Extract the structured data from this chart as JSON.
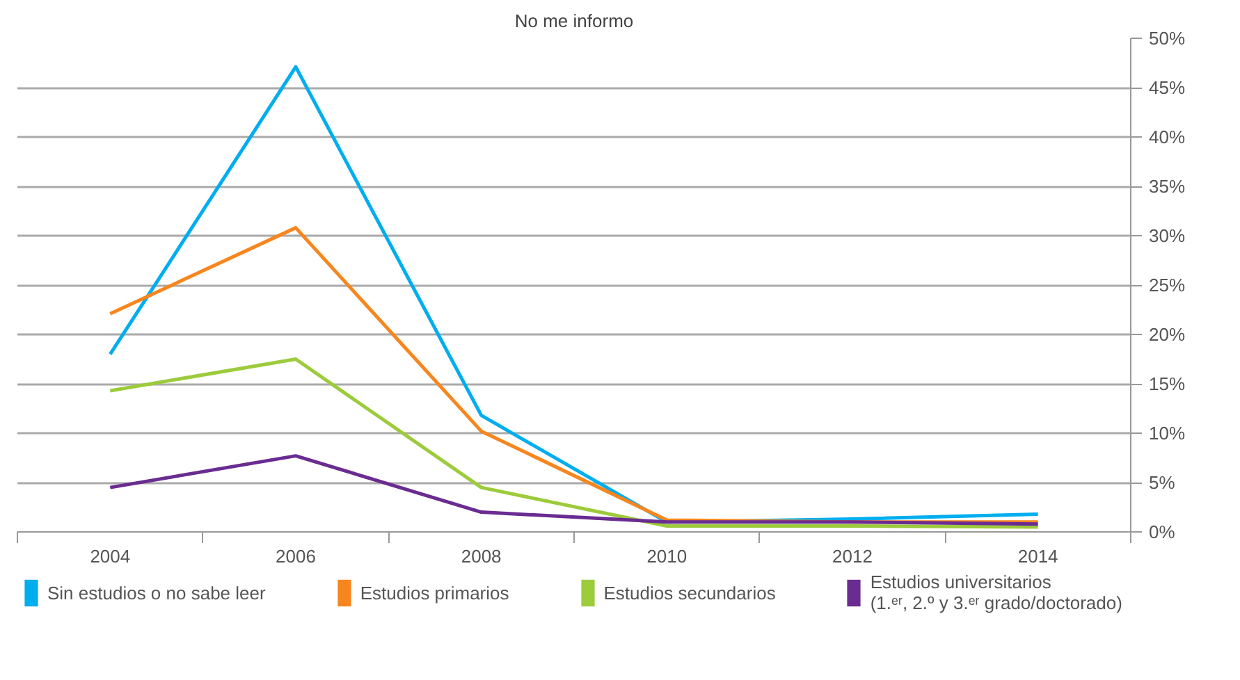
{
  "chart_data": {
    "type": "line",
    "title": "No me informo",
    "categories": [
      "2004",
      "2006",
      "2008",
      "2010",
      "2012",
      "2014"
    ],
    "series": [
      {
        "name": "Sin estudios o no sabe leer",
        "color": "#00aeef",
        "values": [
          18.0,
          47.1,
          11.8,
          1.0,
          1.3,
          1.8
        ]
      },
      {
        "name": "Estudios primarios",
        "color": "#f7861e",
        "values": [
          22.1,
          30.8,
          10.2,
          1.2,
          1.0,
          1.0
        ]
      },
      {
        "name": "Estudios secundarios",
        "color": "#9ccb3b",
        "values": [
          14.3,
          17.5,
          4.5,
          0.6,
          0.6,
          0.5
        ]
      },
      {
        "name": "Estudios universitarios\n(1.ᵉʳ, 2.º y 3.ᵉʳ grado/doctorado)",
        "color": "#6a2c91",
        "values": [
          4.5,
          7.7,
          2.0,
          1.0,
          1.0,
          0.8
        ]
      }
    ],
    "ylim": [
      0,
      50
    ],
    "yticks": [
      {
        "value": 0,
        "label": "0%"
      },
      {
        "value": 5,
        "label": "5%"
      },
      {
        "value": 10,
        "label": "10%"
      },
      {
        "value": 15,
        "label": "15%"
      },
      {
        "value": 20,
        "label": "20%"
      },
      {
        "value": 25,
        "label": "25%"
      },
      {
        "value": 30,
        "label": "30%"
      },
      {
        "value": 35,
        "label": "35%"
      },
      {
        "value": 40,
        "label": "40%"
      },
      {
        "value": 45,
        "label": "45%"
      },
      {
        "value": 50,
        "label": "50%"
      }
    ],
    "grid": "y",
    "legend": "bottom",
    "marker": "none",
    "line_style": "solid"
  }
}
